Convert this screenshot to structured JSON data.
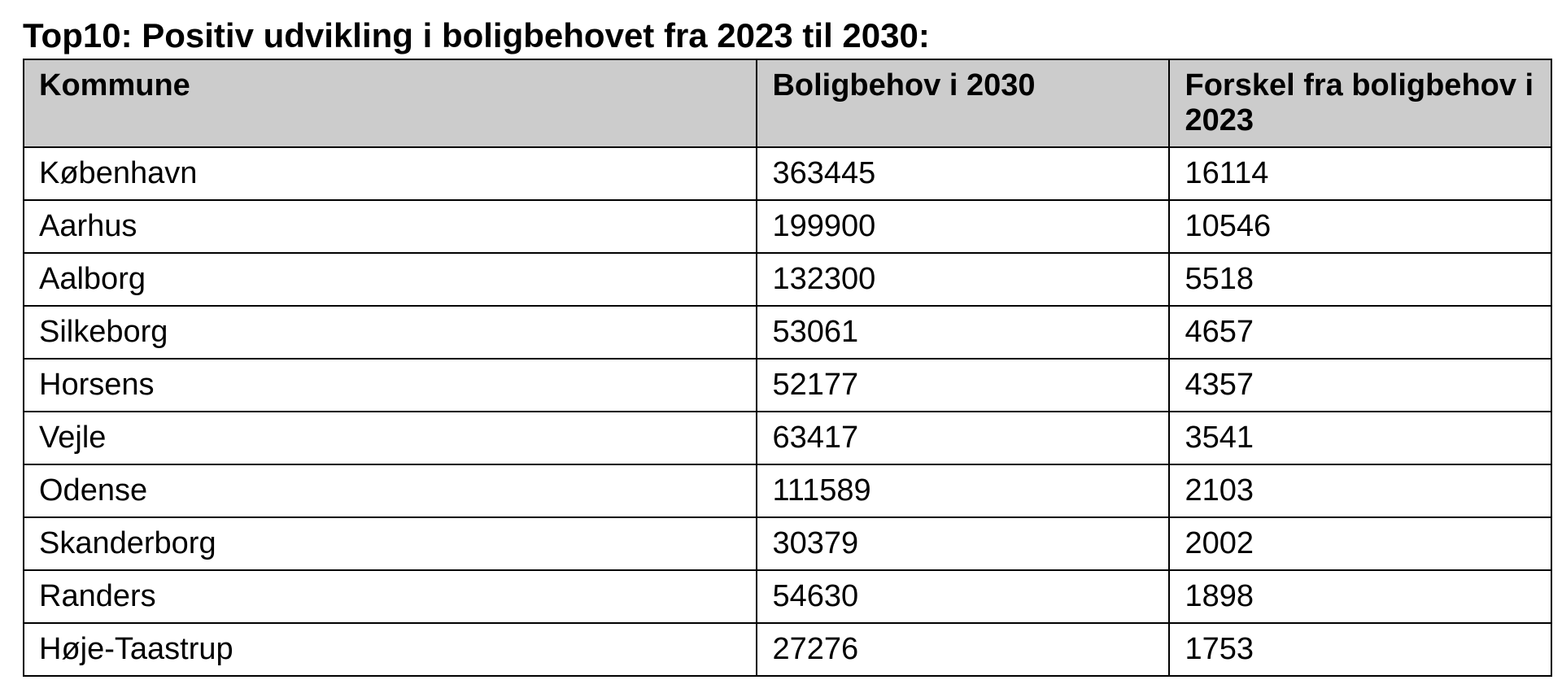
{
  "title": "Top10: Positiv udvikling i boligbehovet fra 2023 til 2030:",
  "table": {
    "type": "table",
    "background_color": "#ffffff",
    "header_background": "#cccccc",
    "border_color": "#000000",
    "font_family": "Verdana",
    "title_fontsize": 42,
    "header_fontsize": 38,
    "cell_fontsize": 38,
    "columns": [
      {
        "label": "Kommune",
        "width": "48%",
        "align": "left"
      },
      {
        "label": "Boligbehov i 2030",
        "width": "27%",
        "align": "left"
      },
      {
        "label": "Forskel fra boligbehov i 2023",
        "width": "25%",
        "align": "left"
      }
    ],
    "rows": [
      {
        "kommune": "København",
        "boligbehov": "363445",
        "forskel": "16114"
      },
      {
        "kommune": "Aarhus",
        "boligbehov": "199900",
        "forskel": "10546"
      },
      {
        "kommune": "Aalborg",
        "boligbehov": "132300",
        "forskel": "5518"
      },
      {
        "kommune": "Silkeborg",
        "boligbehov": "53061",
        "forskel": "4657"
      },
      {
        "kommune": "Horsens",
        "boligbehov": "52177",
        "forskel": "4357"
      },
      {
        "kommune": "Vejle",
        "boligbehov": "63417",
        "forskel": "3541"
      },
      {
        "kommune": "Odense",
        "boligbehov": "111589",
        "forskel": "2103"
      },
      {
        "kommune": "Skanderborg",
        "boligbehov": "30379",
        "forskel": "2002"
      },
      {
        "kommune": "Randers",
        "boligbehov": "54630",
        "forskel": "1898"
      },
      {
        "kommune": "Høje-Taastrup",
        "boligbehov": "27276",
        "forskel": "1753"
      }
    ]
  }
}
